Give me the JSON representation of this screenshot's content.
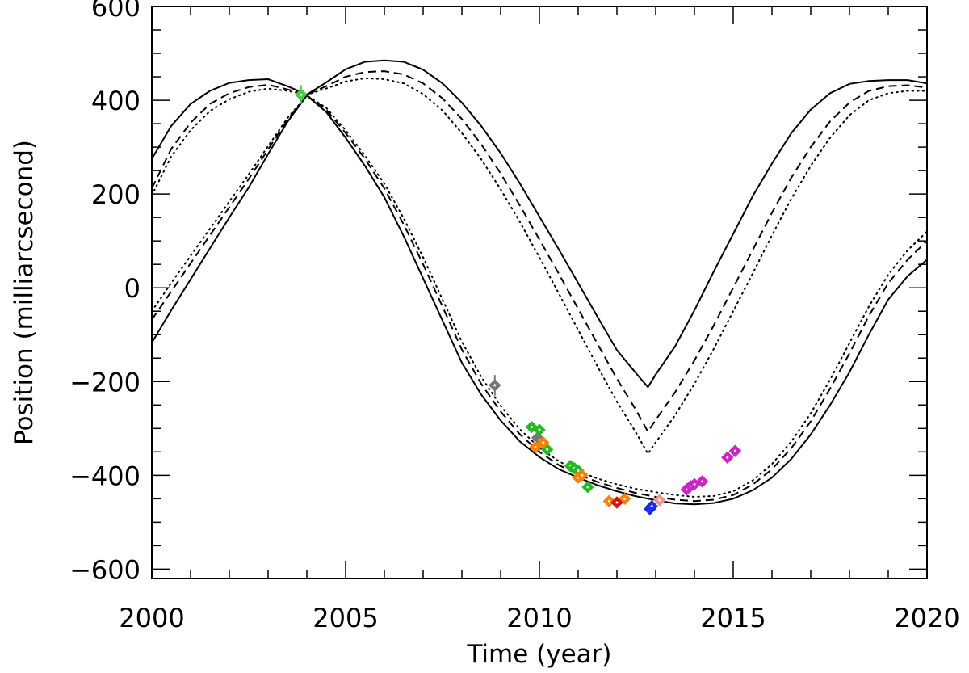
{
  "chart_data": {
    "type": "scatter",
    "xlabel": "Time (year)",
    "ylabel": "Position (milliarcsecond)",
    "xlim": [
      2000,
      2020
    ],
    "ylim": [
      -620,
      600
    ],
    "x_ticks": [
      {
        "value": 2000,
        "label": "2000"
      },
      {
        "value": 2005,
        "label": "2005"
      },
      {
        "value": 2010,
        "label": "2010"
      },
      {
        "value": 2015,
        "label": "2015"
      },
      {
        "value": 2020,
        "label": "2020"
      }
    ],
    "y_ticks": [
      {
        "value": -600,
        "label": "−600"
      },
      {
        "value": -400,
        "label": "−400"
      },
      {
        "value": -200,
        "label": "−200"
      },
      {
        "value": 0,
        "label": "0"
      },
      {
        "value": 200,
        "label": "200"
      },
      {
        "value": 400,
        "label": "400"
      },
      {
        "value": 600,
        "label": "600"
      }
    ],
    "x_minor_step": 1,
    "y_minor_step": 50,
    "curves": [
      {
        "name": "solid-upper",
        "style": "solid",
        "points": [
          [
            2000,
            275
          ],
          [
            2000.5,
            345
          ],
          [
            2001,
            392
          ],
          [
            2001.5,
            420
          ],
          [
            2002,
            437
          ],
          [
            2002.5,
            443
          ],
          [
            2003,
            445
          ],
          [
            2003.5,
            430
          ],
          [
            2004,
            412
          ],
          [
            2004.5,
            438
          ],
          [
            2005,
            466
          ],
          [
            2005.5,
            482
          ],
          [
            2006,
            485
          ],
          [
            2006.5,
            482
          ],
          [
            2007,
            465
          ],
          [
            2007.5,
            436
          ],
          [
            2008,
            395
          ],
          [
            2008.5,
            345
          ],
          [
            2009,
            287
          ],
          [
            2009.5,
            222
          ],
          [
            2010,
            152
          ],
          [
            2010.5,
            82
          ],
          [
            2011,
            10
          ],
          [
            2011.5,
            -62
          ],
          [
            2012,
            -133
          ],
          [
            2012.5,
            -183
          ],
          [
            2012.8,
            -212
          ],
          [
            2013,
            -185
          ],
          [
            2013.5,
            -125
          ],
          [
            2014,
            -48
          ],
          [
            2014.5,
            35
          ],
          [
            2015,
            115
          ],
          [
            2015.5,
            195
          ],
          [
            2016,
            265
          ],
          [
            2016.5,
            330
          ],
          [
            2017,
            380
          ],
          [
            2017.5,
            415
          ],
          [
            2018,
            435
          ],
          [
            2018.5,
            441
          ],
          [
            2019,
            443
          ],
          [
            2019.5,
            443
          ],
          [
            2020,
            436
          ]
        ]
      },
      {
        "name": "dashed-upper",
        "style": "dashed",
        "points": [
          [
            2000,
            212
          ],
          [
            2000.5,
            296
          ],
          [
            2001,
            352
          ],
          [
            2001.5,
            392
          ],
          [
            2002,
            415
          ],
          [
            2002.5,
            428
          ],
          [
            2003,
            433
          ],
          [
            2003.5,
            423
          ],
          [
            2004,
            412
          ],
          [
            2004.5,
            430
          ],
          [
            2005,
            450
          ],
          [
            2005.5,
            460
          ],
          [
            2006,
            462
          ],
          [
            2006.5,
            455
          ],
          [
            2007,
            436
          ],
          [
            2007.5,
            404
          ],
          [
            2008,
            360
          ],
          [
            2008.5,
            306
          ],
          [
            2009,
            244
          ],
          [
            2009.5,
            175
          ],
          [
            2010,
            103
          ],
          [
            2010.5,
            30
          ],
          [
            2011,
            -45
          ],
          [
            2011.5,
            -120
          ],
          [
            2012,
            -194
          ],
          [
            2012.5,
            -262
          ],
          [
            2012.8,
            -307
          ],
          [
            2013,
            -282
          ],
          [
            2013.5,
            -223
          ],
          [
            2014,
            -155
          ],
          [
            2014.5,
            -80
          ],
          [
            2015,
            0
          ],
          [
            2015.5,
            80
          ],
          [
            2016,
            160
          ],
          [
            2016.5,
            235
          ],
          [
            2017,
            300
          ],
          [
            2017.5,
            355
          ],
          [
            2018,
            395
          ],
          [
            2018.5,
            420
          ],
          [
            2019,
            430
          ],
          [
            2019.5,
            432
          ],
          [
            2020,
            427
          ]
        ]
      },
      {
        "name": "dotted-upper",
        "style": "dotted",
        "points": [
          [
            2000,
            197
          ],
          [
            2000.5,
            280
          ],
          [
            2001,
            336
          ],
          [
            2001.5,
            377
          ],
          [
            2002,
            402
          ],
          [
            2002.5,
            418
          ],
          [
            2003,
            425
          ],
          [
            2003.5,
            420
          ],
          [
            2004,
            412
          ],
          [
            2004.5,
            425
          ],
          [
            2005,
            440
          ],
          [
            2005.5,
            447
          ],
          [
            2006,
            445
          ],
          [
            2006.5,
            436
          ],
          [
            2007,
            413
          ],
          [
            2007.5,
            378
          ],
          [
            2008,
            330
          ],
          [
            2008.5,
            274
          ],
          [
            2009,
            210
          ],
          [
            2009.5,
            140
          ],
          [
            2010,
            65
          ],
          [
            2010.5,
            -12
          ],
          [
            2011,
            -90
          ],
          [
            2011.5,
            -168
          ],
          [
            2012,
            -243
          ],
          [
            2012.5,
            -310
          ],
          [
            2012.8,
            -354
          ],
          [
            2013,
            -330
          ],
          [
            2013.5,
            -272
          ],
          [
            2014,
            -205
          ],
          [
            2014.5,
            -130
          ],
          [
            2015,
            -50
          ],
          [
            2015.5,
            30
          ],
          [
            2016,
            112
          ],
          [
            2016.5,
            190
          ],
          [
            2017,
            260
          ],
          [
            2017.5,
            320
          ],
          [
            2018,
            368
          ],
          [
            2018.5,
            400
          ],
          [
            2019,
            415
          ],
          [
            2019.5,
            420
          ],
          [
            2020,
            420
          ]
        ]
      },
      {
        "name": "solid-lower",
        "style": "solid",
        "points": [
          [
            2000,
            -117
          ],
          [
            2000.5,
            -48
          ],
          [
            2001,
            18
          ],
          [
            2001.5,
            84
          ],
          [
            2002,
            150
          ],
          [
            2002.5,
            214
          ],
          [
            2003,
            285
          ],
          [
            2003.5,
            354
          ],
          [
            2004,
            410
          ],
          [
            2004.5,
            375
          ],
          [
            2005,
            320
          ],
          [
            2005.5,
            260
          ],
          [
            2006,
            193
          ],
          [
            2006.5,
            110
          ],
          [
            2007,
            20
          ],
          [
            2007.5,
            -70
          ],
          [
            2008,
            -160
          ],
          [
            2008.5,
            -228
          ],
          [
            2009,
            -283
          ],
          [
            2009.5,
            -328
          ],
          [
            2010,
            -361
          ],
          [
            2010.5,
            -387
          ],
          [
            2011,
            -405
          ],
          [
            2011.5,
            -421
          ],
          [
            2012,
            -434
          ],
          [
            2012.5,
            -445
          ],
          [
            2013,
            -453
          ],
          [
            2013.5,
            -460
          ],
          [
            2014,
            -462
          ],
          [
            2014.5,
            -459
          ],
          [
            2015,
            -450
          ],
          [
            2015.5,
            -432
          ],
          [
            2016,
            -405
          ],
          [
            2016.5,
            -365
          ],
          [
            2017,
            -313
          ],
          [
            2017.5,
            -250
          ],
          [
            2018,
            -180
          ],
          [
            2018.5,
            -100
          ],
          [
            2019,
            -25
          ],
          [
            2019.5,
            25
          ],
          [
            2020,
            60
          ]
        ]
      },
      {
        "name": "dashed-lower",
        "style": "dashed",
        "points": [
          [
            2000,
            -68
          ],
          [
            2000.5,
            -8
          ],
          [
            2001,
            52
          ],
          [
            2001.5,
            112
          ],
          [
            2002,
            172
          ],
          [
            2002.5,
            232
          ],
          [
            2003,
            295
          ],
          [
            2003.5,
            358
          ],
          [
            2004,
            410
          ],
          [
            2004.5,
            380
          ],
          [
            2005,
            330
          ],
          [
            2005.5,
            275
          ],
          [
            2006,
            212
          ],
          [
            2006.5,
            135
          ],
          [
            2007,
            50
          ],
          [
            2007.5,
            -40
          ],
          [
            2008,
            -132
          ],
          [
            2008.5,
            -205
          ],
          [
            2009,
            -264
          ],
          [
            2009.5,
            -313
          ],
          [
            2010,
            -350
          ],
          [
            2010.5,
            -378
          ],
          [
            2011,
            -398
          ],
          [
            2011.5,
            -414
          ],
          [
            2012,
            -427
          ],
          [
            2012.5,
            -438
          ],
          [
            2013,
            -446
          ],
          [
            2013.5,
            -452
          ],
          [
            2014,
            -455
          ],
          [
            2014.5,
            -452
          ],
          [
            2015,
            -442
          ],
          [
            2015.5,
            -420
          ],
          [
            2016,
            -387
          ],
          [
            2016.5,
            -342
          ],
          [
            2017,
            -285
          ],
          [
            2017.5,
            -215
          ],
          [
            2018,
            -140
          ],
          [
            2018.5,
            -60
          ],
          [
            2019,
            10
          ],
          [
            2019.5,
            60
          ],
          [
            2020,
            100
          ]
        ]
      },
      {
        "name": "dotted-lower",
        "style": "dotted",
        "points": [
          [
            2000,
            -50
          ],
          [
            2000.5,
            10
          ],
          [
            2001,
            68
          ],
          [
            2001.5,
            126
          ],
          [
            2002,
            184
          ],
          [
            2002.5,
            242
          ],
          [
            2003,
            302
          ],
          [
            2003.5,
            362
          ],
          [
            2004,
            410
          ],
          [
            2004.5,
            384
          ],
          [
            2005,
            336
          ],
          [
            2005.5,
            282
          ],
          [
            2006,
            222
          ],
          [
            2006.5,
            148
          ],
          [
            2007,
            65
          ],
          [
            2007.5,
            -25
          ],
          [
            2008,
            -115
          ],
          [
            2008.5,
            -190
          ],
          [
            2009,
            -252
          ],
          [
            2009.5,
            -302
          ],
          [
            2010,
            -341
          ],
          [
            2010.5,
            -370
          ],
          [
            2011,
            -391
          ],
          [
            2011.5,
            -407
          ],
          [
            2012,
            -419
          ],
          [
            2012.5,
            -429
          ],
          [
            2013,
            -436
          ],
          [
            2013.5,
            -442
          ],
          [
            2014,
            -446
          ],
          [
            2014.5,
            -444
          ],
          [
            2015,
            -434
          ],
          [
            2015.5,
            -411
          ],
          [
            2016,
            -376
          ],
          [
            2016.5,
            -328
          ],
          [
            2017,
            -268
          ],
          [
            2017.5,
            -196
          ],
          [
            2018,
            -118
          ],
          [
            2018.5,
            -40
          ],
          [
            2019,
            28
          ],
          [
            2019.5,
            80
          ],
          [
            2020,
            120
          ]
        ]
      }
    ],
    "series": [
      {
        "name": "light green",
        "color": "#3fd03f",
        "points": [
          [
            2003.85,
            412
          ]
        ],
        "y_error": 20
      },
      {
        "name": "gray",
        "color": "#777777",
        "points": [
          [
            2008.85,
            -208
          ],
          [
            2009.95,
            -320
          ],
          [
            2010.0,
            -325
          ]
        ],
        "y_error": 22
      },
      {
        "name": "green",
        "color": "#22bb22",
        "points": [
          [
            2009.8,
            -297
          ],
          [
            2010.0,
            -303
          ],
          [
            2010.2,
            -345
          ],
          [
            2010.8,
            -380
          ],
          [
            2010.9,
            -385
          ],
          [
            2011.0,
            -390
          ],
          [
            2011.25,
            -425
          ]
        ]
      },
      {
        "name": "orange",
        "color": "#ff7f00",
        "points": [
          [
            2009.9,
            -340
          ],
          [
            2010.1,
            -330
          ],
          [
            2011.0,
            -405
          ],
          [
            2011.1,
            -400
          ],
          [
            2011.8,
            -455
          ],
          [
            2012.2,
            -450
          ]
        ]
      },
      {
        "name": "red",
        "color": "#dd1111",
        "points": [
          [
            2012.0,
            -458
          ]
        ]
      },
      {
        "name": "blue",
        "color": "#1a2aee",
        "points": [
          [
            2012.85,
            -472
          ],
          [
            2012.9,
            -466
          ]
        ]
      },
      {
        "name": "pink",
        "color": "#f49090",
        "points": [
          [
            2013.1,
            -453
          ]
        ]
      },
      {
        "name": "magenta",
        "color": "#cc22cc",
        "points": [
          [
            2013.8,
            -430
          ],
          [
            2013.9,
            -423
          ],
          [
            2014.0,
            -419
          ],
          [
            2014.2,
            -413
          ],
          [
            2014.85,
            -362
          ],
          [
            2015.05,
            -348
          ]
        ]
      }
    ]
  }
}
